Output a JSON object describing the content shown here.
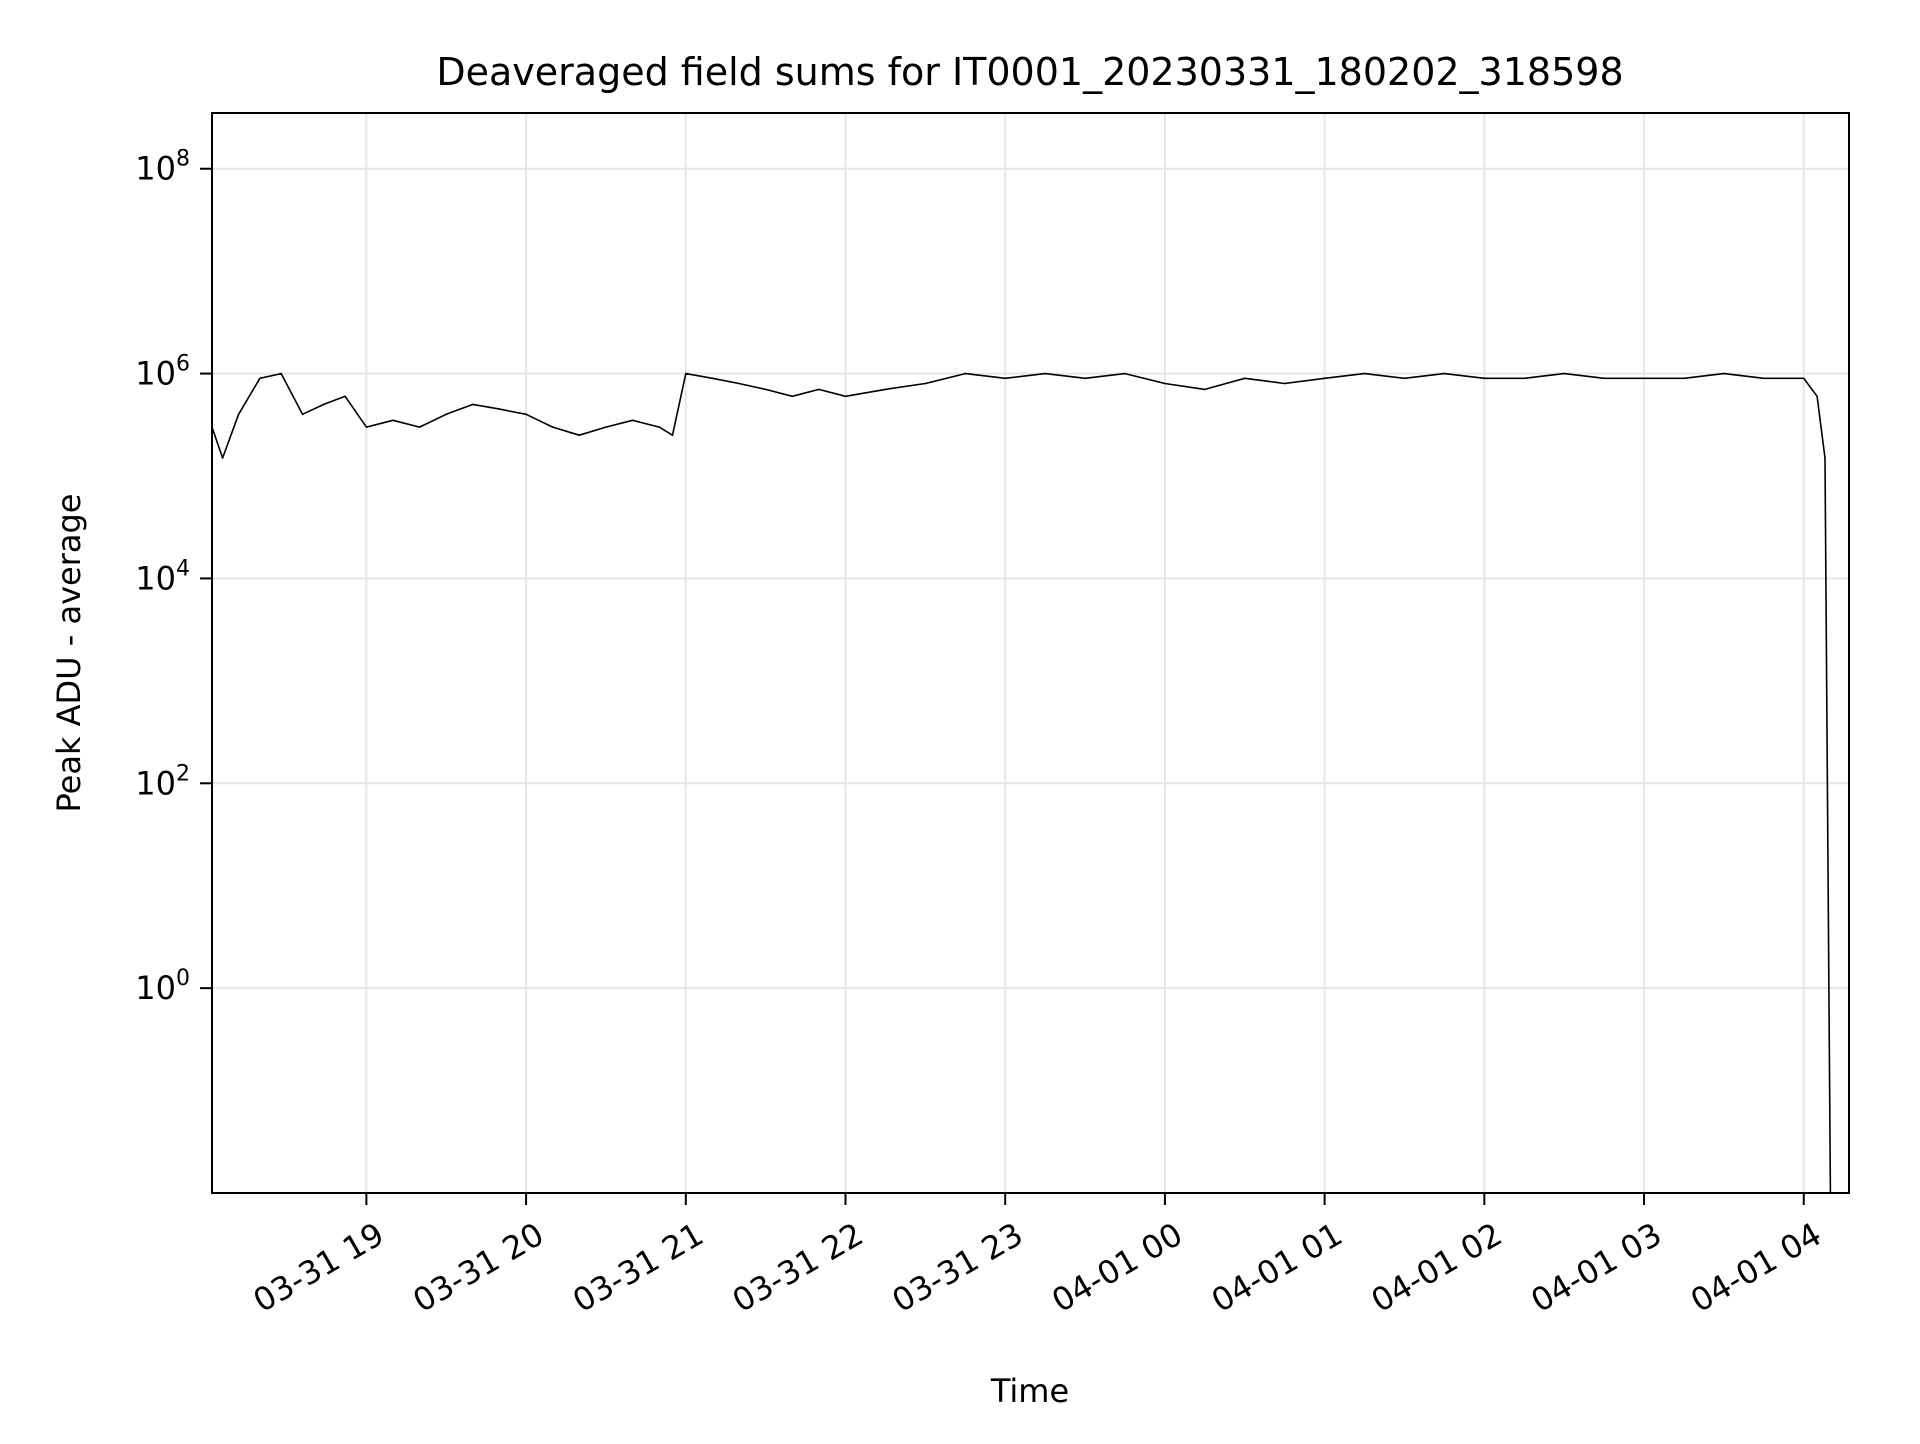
{
  "chart_data": {
    "type": "line",
    "title": "Deaveraged field sums for IT0001_20230331_180202_318598",
    "xlabel": "Time",
    "ylabel": "Peak ADU - average",
    "x_range": [
      "2023-03-31 18:02",
      "2023-04-01 04:17"
    ],
    "y_scale": "log",
    "y_range": [
      0.01,
      350000000.0
    ],
    "grid": true,
    "line_color": "#000000",
    "x_ticks": [
      {
        "value": "2023-03-31 19:00",
        "label": "03-31 19"
      },
      {
        "value": "2023-03-31 20:00",
        "label": "03-31 20"
      },
      {
        "value": "2023-03-31 21:00",
        "label": "03-31 21"
      },
      {
        "value": "2023-03-31 22:00",
        "label": "03-31 22"
      },
      {
        "value": "2023-03-31 23:00",
        "label": "03-31 23"
      },
      {
        "value": "2023-04-01 00:00",
        "label": "04-01 00"
      },
      {
        "value": "2023-04-01 01:00",
        "label": "04-01 01"
      },
      {
        "value": "2023-04-01 02:00",
        "label": "04-01 02"
      },
      {
        "value": "2023-04-01 03:00",
        "label": "04-01 03"
      },
      {
        "value": "2023-04-01 04:00",
        "label": "04-01 04"
      }
    ],
    "y_ticks": [
      {
        "value": 1,
        "base": "10",
        "exp": "0"
      },
      {
        "value": 100,
        "base": "10",
        "exp": "2"
      },
      {
        "value": 10000,
        "base": "10",
        "exp": "4"
      },
      {
        "value": 1000000,
        "base": "10",
        "exp": "6"
      },
      {
        "value": 100000000,
        "base": "10",
        "exp": "8"
      }
    ],
    "series": [
      {
        "x": [
          "2023-03-31 18:02",
          "2023-03-31 18:06",
          "2023-03-31 18:12",
          "2023-03-31 18:20",
          "2023-03-31 18:28",
          "2023-03-31 18:36",
          "2023-03-31 18:44",
          "2023-03-31 18:52",
          "2023-03-31 19:00",
          "2023-03-31 19:10",
          "2023-03-31 19:20",
          "2023-03-31 19:30",
          "2023-03-31 19:40",
          "2023-03-31 19:50",
          "2023-03-31 20:00",
          "2023-03-31 20:10",
          "2023-03-31 20:20",
          "2023-03-31 20:30",
          "2023-03-31 20:40",
          "2023-03-31 20:50",
          "2023-03-31 20:55",
          "2023-03-31 21:00",
          "2023-03-31 21:10",
          "2023-03-31 21:20",
          "2023-03-31 21:30",
          "2023-03-31 21:40",
          "2023-03-31 21:50",
          "2023-03-31 22:00",
          "2023-03-31 22:15",
          "2023-03-31 22:30",
          "2023-03-31 22:45",
          "2023-03-31 23:00",
          "2023-03-31 23:15",
          "2023-03-31 23:30",
          "2023-03-31 23:45",
          "2023-04-01 00:00",
          "2023-04-01 00:15",
          "2023-04-01 00:30",
          "2023-04-01 00:45",
          "2023-04-01 01:00",
          "2023-04-01 01:15",
          "2023-04-01 01:30",
          "2023-04-01 01:45",
          "2023-04-01 02:00",
          "2023-04-01 02:15",
          "2023-04-01 02:30",
          "2023-04-01 02:45",
          "2023-04-01 03:00",
          "2023-04-01 03:15",
          "2023-04-01 03:30",
          "2023-04-01 03:45",
          "2023-04-01 04:00",
          "2023-04-01 04:05",
          "2023-04-01 04:08",
          "2023-04-01 04:10"
        ],
        "y": [
          300000,
          150000,
          400000,
          900000,
          1000000,
          400000,
          500000,
          600000,
          300000,
          350000,
          300000,
          400000,
          500000,
          450000,
          400000,
          300000,
          250000,
          300000,
          350000,
          300000,
          250000,
          1000000,
          900000,
          800000,
          700000,
          600000,
          700000,
          600000,
          700000,
          800000,
          1000000,
          900000,
          1000000,
          900000,
          1000000,
          800000,
          700000,
          900000,
          800000,
          900000,
          1000000,
          900000,
          1000000,
          900000,
          900000,
          1000000,
          900000,
          900000,
          900000,
          1000000,
          900000,
          900000,
          600000,
          150000,
          0.01
        ]
      }
    ]
  }
}
